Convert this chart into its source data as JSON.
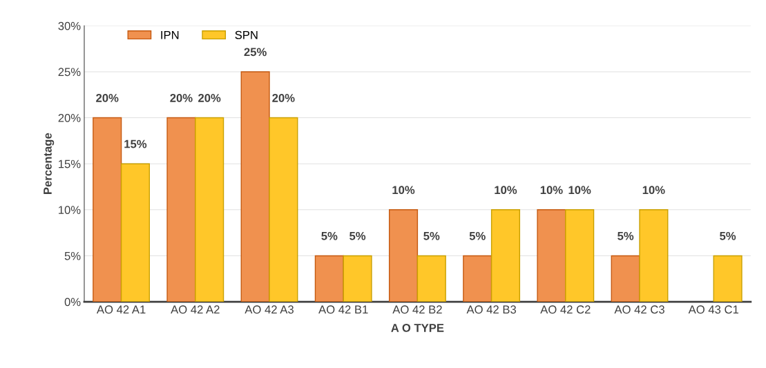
{
  "chart_data": {
    "type": "bar",
    "xlabel": "A O TYPE",
    "ylabel": "Percentage",
    "categories": [
      "AO 42 A1",
      "AO 42 A2",
      "AO 42 A3",
      "AO 42 B1",
      "AO 42 B2",
      "AO 42 B3",
      "AO 42 C2",
      "AO 42 C3",
      "AO 43 C1"
    ],
    "series": [
      {
        "name": "IPN",
        "color": "#f0914f",
        "values": [
          20,
          20,
          25,
          5,
          10,
          5,
          10,
          5,
          null
        ],
        "value_labels": [
          "20%",
          "20%",
          "25%",
          "5%",
          "10%",
          "5%",
          "10%",
          "5%",
          null
        ]
      },
      {
        "name": "SPN",
        "color": "#ffc729",
        "values": [
          15,
          20,
          20,
          5,
          5,
          10,
          10,
          10,
          5
        ],
        "value_labels": [
          "15%",
          "20%",
          "20%",
          "5%",
          "5%",
          "10%",
          "10%",
          "10%",
          "5%"
        ]
      }
    ],
    "ylim": [
      0,
      30
    ],
    "yticks": [
      {
        "value": 0,
        "label": "0%"
      },
      {
        "value": 5,
        "label": "5%"
      },
      {
        "value": 10,
        "label": "10%"
      },
      {
        "value": 15,
        "label": "15%"
      },
      {
        "value": 20,
        "label": "20%"
      },
      {
        "value": 25,
        "label": "25%"
      },
      {
        "value": 30,
        "label": "30%"
      }
    ],
    "grid": "y",
    "legend": "top left"
  }
}
